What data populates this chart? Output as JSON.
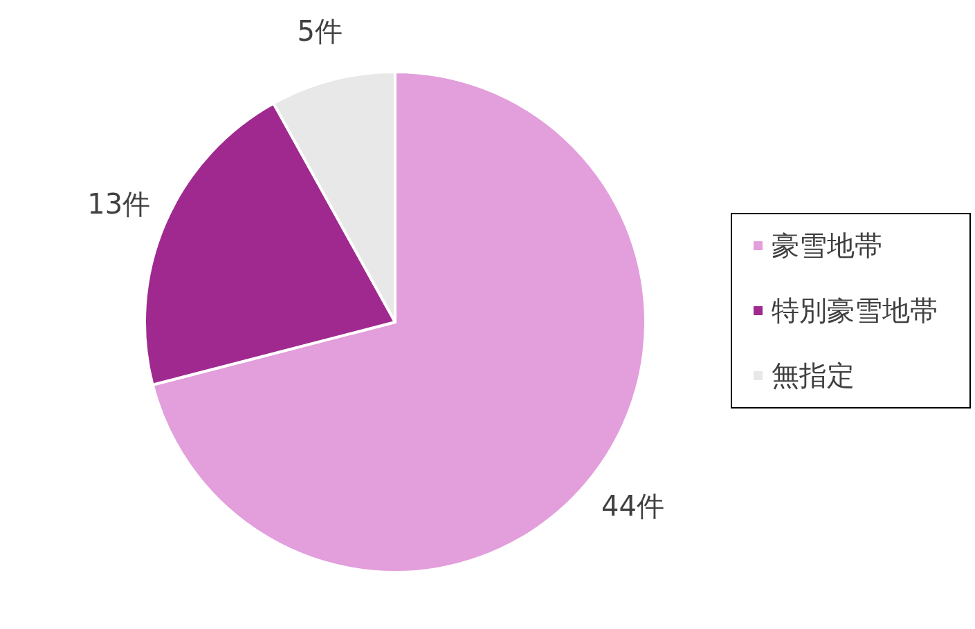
{
  "chart_data": {
    "type": "pie",
    "categories": [
      "豪雪地帯",
      "特別豪雪地帯",
      "無指定"
    ],
    "values": [
      44,
      13,
      5
    ],
    "value_labels": [
      "44件",
      "13件",
      "5件"
    ],
    "colors": [
      "#e39edc",
      "#a0298f",
      "#e8e8e8"
    ],
    "legend": "right"
  }
}
